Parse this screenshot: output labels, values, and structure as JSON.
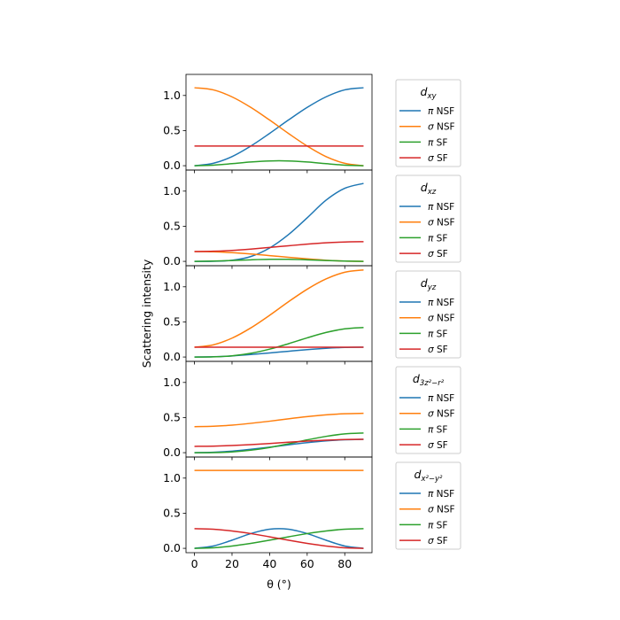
{
  "chart_data": {
    "type": "line",
    "layout": "5 vertically stacked panels, shared x and y axes",
    "xlabel": "θ (°)",
    "ylabel": "Scattering intensity",
    "xlim": [
      -4.5,
      94.5
    ],
    "ylim": [
      -0.062,
      1.3
    ],
    "xticks": [
      0,
      20,
      40,
      60,
      80
    ],
    "yticks": [
      0.0,
      0.5,
      1.0
    ],
    "ytick_labels": [
      "0.0",
      "0.5",
      "1.0"
    ],
    "grid": false,
    "legend_placement": "right of each panel",
    "colors": {
      "pi NSF": "#1f77b4",
      "sigma NSF": "#ff7f0e",
      "pi SF": "#2ca02c",
      "sigma SF": "#d62728"
    },
    "x": [
      0,
      10,
      20,
      30,
      40,
      50,
      60,
      70,
      80,
      90
    ],
    "panels": [
      {
        "legend_title_base": "d",
        "legend_title_sub": "xy",
        "series": [
          {
            "name": "π NSF",
            "color": "#1f77b4",
            "values": [
              0,
              0.034,
              0.13,
              0.28,
              0.46,
              0.65,
              0.83,
              0.98,
              1.08,
              1.11
            ]
          },
          {
            "name": "σ NSF",
            "color": "#ff7f0e",
            "values": [
              1.11,
              1.08,
              0.98,
              0.83,
              0.65,
              0.46,
              0.28,
              0.13,
              0.034,
              0
            ]
          },
          {
            "name": "π SF",
            "color": "#2ca02c",
            "values": [
              0,
              0.008,
              0.029,
              0.053,
              0.068,
              0.068,
              0.053,
              0.029,
              0.008,
              0
            ]
          },
          {
            "name": "σ SF",
            "color": "#d62728",
            "values": [
              0.28,
              0.28,
              0.28,
              0.28,
              0.28,
              0.28,
              0.28,
              0.28,
              0.28,
              0.28
            ]
          }
        ]
      },
      {
        "legend_title_base": "d",
        "legend_title_sub": "xz",
        "series": [
          {
            "name": "π NSF",
            "color": "#1f77b4",
            "values": [
              0,
              0.001,
              0.015,
              0.069,
              0.19,
              0.38,
              0.62,
              0.87,
              1.04,
              1.11
            ]
          },
          {
            "name": "σ NSF",
            "color": "#ff7f0e",
            "values": [
              0.14,
              0.136,
              0.124,
              0.105,
              0.082,
              0.058,
              0.035,
              0.016,
              0.004,
              0
            ]
          },
          {
            "name": "π SF",
            "color": "#2ca02c",
            "values": [
              0,
              0.004,
              0.012,
              0.022,
              0.029,
              0.029,
              0.022,
              0.012,
              0.004,
              0
            ]
          },
          {
            "name": "σ SF",
            "color": "#d62728",
            "values": [
              0.14,
              0.144,
              0.156,
              0.175,
              0.198,
              0.222,
              0.245,
              0.264,
              0.276,
              0.28
            ]
          }
        ]
      },
      {
        "legend_title_base": "d",
        "legend_title_sub": "yz",
        "series": [
          {
            "name": "π NSF",
            "color": "#1f77b4",
            "values": [
              0,
              0.004,
              0.016,
              0.035,
              0.058,
              0.082,
              0.105,
              0.124,
              0.136,
              0.14
            ]
          },
          {
            "name": "σ NSF",
            "color": "#ff7f0e",
            "values": [
              0.14,
              0.173,
              0.269,
              0.415,
              0.594,
              0.786,
              0.965,
              1.111,
              1.207,
              1.24
            ]
          },
          {
            "name": "π SF",
            "color": "#2ca02c",
            "values": [
              0,
              0.002,
              0.017,
              0.053,
              0.112,
              0.189,
              0.273,
              0.349,
              0.401,
              0.42
            ]
          },
          {
            "name": "σ SF",
            "color": "#d62728",
            "values": [
              0.14,
              0.14,
              0.14,
              0.14,
              0.14,
              0.14,
              0.14,
              0.14,
              0.14,
              0.14
            ]
          }
        ]
      },
      {
        "legend_title_base": "d",
        "legend_title_sub": "3z²−r²",
        "series": [
          {
            "name": "π NSF",
            "color": "#1f77b4",
            "values": [
              0,
              0.006,
              0.022,
              0.048,
              0.078,
              0.112,
              0.143,
              0.168,
              0.184,
              0.19
            ]
          },
          {
            "name": "σ NSF",
            "color": "#ff7f0e",
            "values": [
              0.37,
              0.376,
              0.392,
              0.418,
              0.448,
              0.482,
              0.513,
              0.538,
              0.554,
              0.56
            ]
          },
          {
            "name": "π SF",
            "color": "#2ca02c",
            "values": [
              0,
              0.001,
              0.011,
              0.035,
              0.074,
              0.126,
              0.182,
              0.232,
              0.267,
              0.28
            ]
          },
          {
            "name": "σ SF",
            "color": "#d62728",
            "values": [
              0.09,
              0.093,
              0.102,
              0.115,
              0.131,
              0.149,
              0.165,
              0.178,
              0.187,
              0.19
            ]
          }
        ]
      },
      {
        "legend_title_base": "d",
        "legend_title_sub": "x²−y²",
        "series": [
          {
            "name": "π NSF",
            "color": "#1f77b4",
            "values": [
              0,
              0.033,
              0.116,
              0.21,
              0.272,
              0.272,
              0.21,
              0.116,
              0.033,
              0
            ]
          },
          {
            "name": "σ NSF",
            "color": "#ff7f0e",
            "values": [
              1.11,
              1.11,
              1.11,
              1.11,
              1.11,
              1.11,
              1.11,
              1.11,
              1.11,
              1.11
            ]
          },
          {
            "name": "π SF",
            "color": "#2ca02c",
            "values": [
              0,
              0.008,
              0.033,
              0.07,
              0.116,
              0.164,
              0.21,
              0.247,
              0.272,
              0.28
            ]
          },
          {
            "name": "σ SF",
            "color": "#d62728",
            "values": [
              0.28,
              0.272,
              0.247,
              0.21,
              0.164,
              0.116,
              0.07,
              0.033,
              0.008,
              0
            ]
          }
        ]
      }
    ]
  }
}
